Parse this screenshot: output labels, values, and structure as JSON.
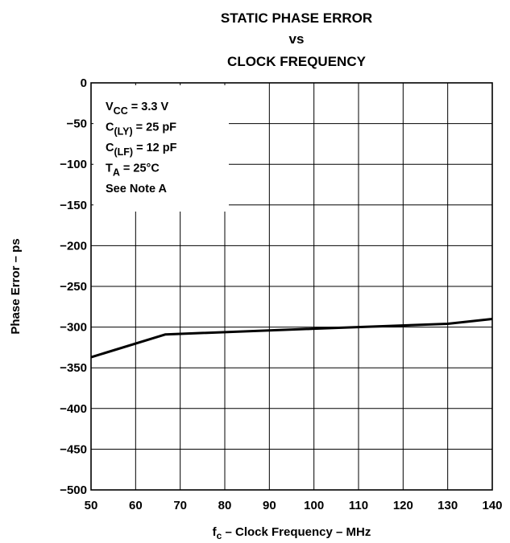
{
  "chart_data": {
    "type": "line",
    "title_lines": [
      "STATIC PHASE ERROR",
      "vs",
      "CLOCK FREQUENCY"
    ],
    "xlabel": {
      "main": "f",
      "sub": "c",
      "rest": " – Clock Frequency – MHz"
    },
    "ylabel": "Phase Error – ps",
    "xlim": [
      50,
      140
    ],
    "ylim": [
      -500,
      0
    ],
    "x_ticks": [
      50,
      60,
      70,
      80,
      90,
      100,
      110,
      120,
      130,
      140
    ],
    "y_ticks": [
      0,
      -50,
      -100,
      -150,
      -200,
      -250,
      -300,
      -350,
      -400,
      -450,
      -500
    ],
    "x_tick_labels": [
      "50",
      "60",
      "70",
      "80",
      "90",
      "100",
      "110",
      "120",
      "130",
      "140"
    ],
    "y_tick_labels": [
      "0",
      "−50",
      "−100",
      "−150",
      "−200",
      "−250",
      "−300",
      "−350",
      "−400",
      "−450",
      "−500"
    ],
    "grid": true,
    "series": [
      {
        "x": [
          50,
          66.7,
          100,
          130,
          140
        ],
        "y": [
          -337,
          -309,
          -302,
          -296,
          -290
        ]
      }
    ],
    "annotation_lines": [
      {
        "main": "V",
        "sub": "CC",
        "rest": " = 3.3 V"
      },
      {
        "main": "C",
        "sub": "(LY)",
        "rest": " = 25 pF"
      },
      {
        "main": "C",
        "sub": "(LF)",
        "rest": " = 12 pF"
      },
      {
        "main": "T",
        "sub": "A",
        "rest": " = 25°C"
      },
      {
        "main": "See Note A",
        "sub": "",
        "rest": ""
      }
    ],
    "annotation_placement": "top-left"
  }
}
